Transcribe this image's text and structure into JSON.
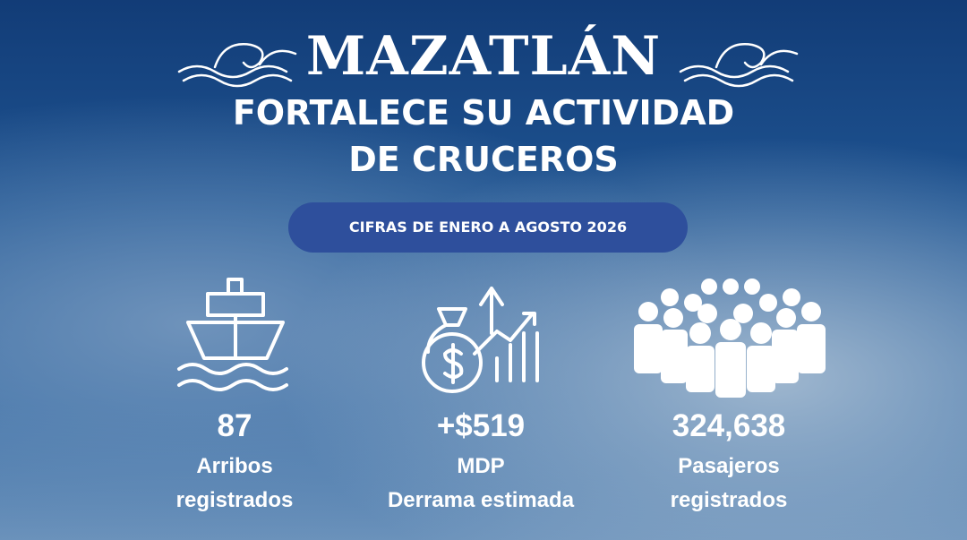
{
  "header": {
    "title": "MAZATLÁN",
    "subtitle_lines": [
      "FORTALECE SU ACTIVIDAD",
      "DE CRUCEROS"
    ]
  },
  "badge": "CIFRAS DE ENERO A AGOSTO 2026",
  "stats": [
    {
      "value": "87",
      "label_lines": [
        "Arribos",
        "registrados"
      ]
    },
    {
      "value": "+$519",
      "label_lines": [
        "MDP",
        "Derrama estimada"
      ]
    },
    {
      "value": "324,638",
      "label_lines": [
        "Pasajeros",
        "registrados"
      ]
    }
  ]
}
